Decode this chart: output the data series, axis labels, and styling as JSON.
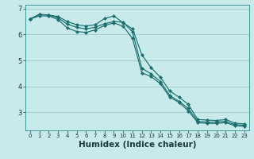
{
  "xlabel": "Humidex (Indice chaleur)",
  "bg_color": "#c8eaea",
  "grid_color": "#a0cccc",
  "line_color": "#1a6e6e",
  "xlim": [
    -0.5,
    23.5
  ],
  "ylim": [
    2.3,
    7.15
  ],
  "yticks": [
    3,
    4,
    5,
    6,
    7
  ],
  "xticks": [
    0,
    1,
    2,
    3,
    4,
    5,
    6,
    7,
    8,
    9,
    10,
    11,
    12,
    13,
    14,
    15,
    16,
    17,
    18,
    19,
    20,
    21,
    22,
    23
  ],
  "line1_x": [
    0,
    1,
    2,
    3,
    4,
    5,
    6,
    7,
    8,
    9,
    10,
    11,
    12,
    13,
    14,
    15,
    16,
    17,
    18,
    19,
    20,
    21,
    22,
    23
  ],
  "line1_y": [
    6.6,
    6.78,
    6.75,
    6.7,
    6.5,
    6.38,
    6.33,
    6.38,
    6.62,
    6.72,
    6.45,
    6.22,
    5.22,
    4.72,
    4.35,
    3.82,
    3.58,
    3.3,
    2.72,
    2.7,
    2.68,
    2.72,
    2.58,
    2.55
  ],
  "line2_x": [
    0,
    1,
    2,
    3,
    4,
    5,
    6,
    7,
    8,
    9,
    10,
    11,
    12,
    13,
    14,
    15,
    16,
    17,
    18,
    19,
    20,
    21,
    22,
    23
  ],
  "line2_y": [
    6.6,
    6.78,
    6.75,
    6.65,
    6.4,
    6.28,
    6.22,
    6.28,
    6.42,
    6.5,
    6.48,
    6.1,
    4.7,
    4.48,
    4.18,
    3.65,
    3.42,
    3.15,
    2.65,
    2.62,
    2.62,
    2.65,
    2.52,
    2.5
  ],
  "line3_x": [
    0,
    1,
    2,
    3,
    4,
    5,
    6,
    7,
    8,
    9,
    10,
    11,
    12,
    13,
    14,
    15,
    16,
    17,
    18,
    19,
    20,
    21,
    22,
    23
  ],
  "line3_y": [
    6.6,
    6.72,
    6.72,
    6.58,
    6.25,
    6.12,
    6.08,
    6.18,
    6.35,
    6.45,
    6.32,
    5.85,
    4.52,
    4.38,
    4.1,
    3.58,
    3.38,
    3.05,
    2.6,
    2.57,
    2.57,
    2.6,
    2.48,
    2.46
  ],
  "tick_fontsize": 5.5,
  "xlabel_fontsize": 7.5
}
